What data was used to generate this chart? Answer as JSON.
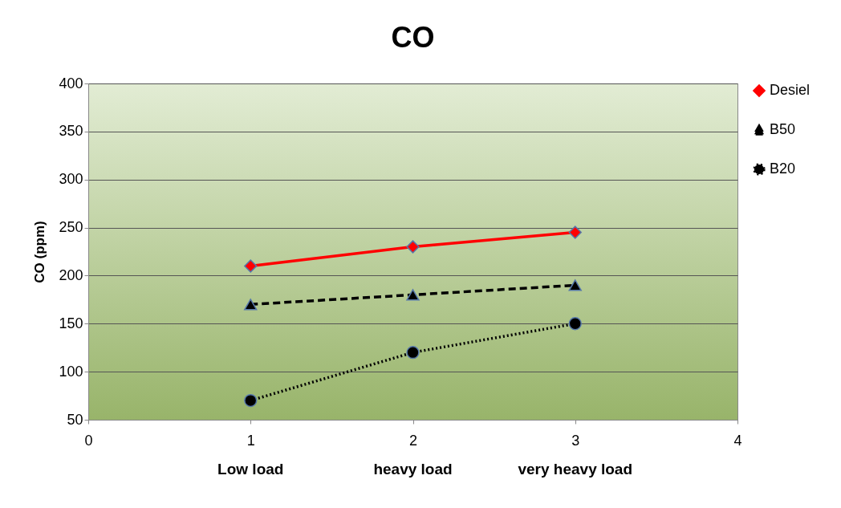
{
  "chart_data": {
    "type": "line",
    "title": "CO",
    "ylabel": "CO (ppm)",
    "x": [
      1,
      2,
      3
    ],
    "xlim": [
      0,
      4
    ],
    "xticks": [
      0,
      1,
      2,
      3,
      4
    ],
    "ylim": [
      50,
      400
    ],
    "yticks": [
      50,
      100,
      150,
      200,
      250,
      300,
      350,
      400
    ],
    "grid": "y",
    "legend": "right",
    "annotations": [
      "Low load",
      "heavy load",
      "very heavy load"
    ],
    "series": [
      {
        "name": "Desiel",
        "color": "#ff0000",
        "marker": "diamond",
        "line_style": "solid",
        "values": [
          210,
          230,
          245
        ]
      },
      {
        "name": "B50",
        "color": "#000000",
        "marker": "triangle",
        "line_style": "dashed",
        "values": [
          170,
          180,
          190
        ]
      },
      {
        "name": "B20",
        "color": "#000000",
        "marker": "circle",
        "line_style": "dotted",
        "values": [
          70,
          120,
          150
        ]
      }
    ]
  }
}
